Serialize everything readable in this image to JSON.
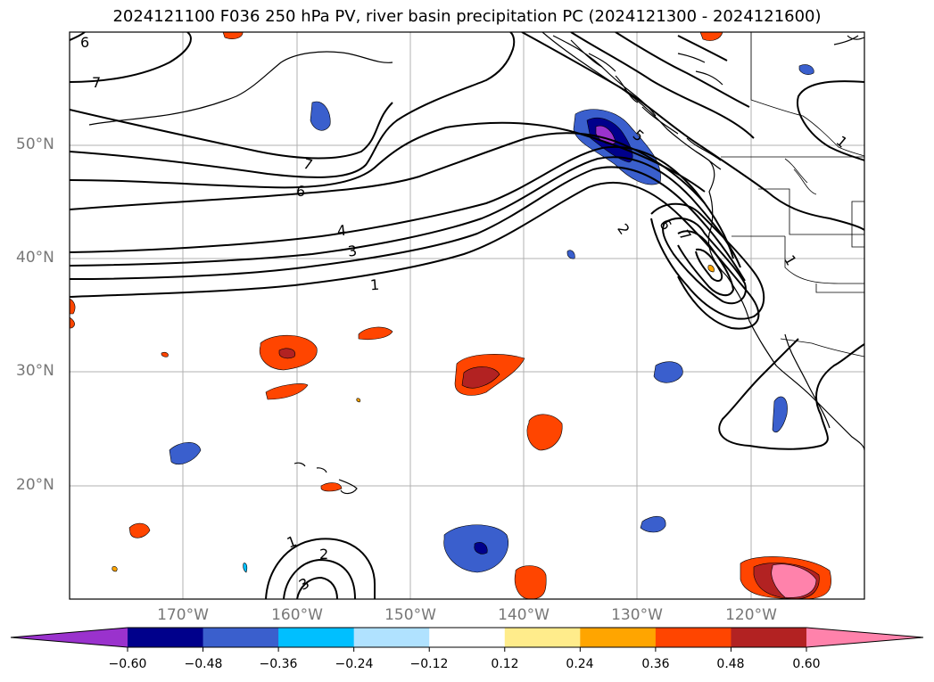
{
  "title": "2024121100 F036 250 hPa PV, river basin precipitation PC (2024121300 - 2024121600)",
  "lat_labels": [
    "50°N",
    "40°N",
    "30°N",
    "20°N"
  ],
  "lon_labels": [
    "170°W",
    "160°W",
    "150°W",
    "140°W",
    "130°W",
    "120°W"
  ],
  "contour_labels": [
    "6",
    "7",
    "7",
    "6",
    "4",
    "3",
    "1",
    "5",
    "2",
    "6",
    "7",
    "1",
    "1",
    "1",
    "2",
    "3"
  ],
  "colorbar": {
    "ticks": [
      "−0.60",
      "−0.48",
      "−0.36",
      "−0.24",
      "−0.12",
      "0.12",
      "0.24",
      "0.36",
      "0.48",
      "0.60"
    ],
    "colors": [
      "#9a32cd",
      "#00008b",
      "#3a5fcd",
      "#00bfff",
      "#b0e2ff",
      "#ffffff",
      "#ffec8b",
      "#ffa500",
      "#ff4500",
      "#b22222",
      "#ff82ab"
    ]
  },
  "map_meta": {
    "extent_lon": [
      -180,
      -110
    ],
    "extent_lat": [
      10,
      60
    ],
    "field": "250 hPa PV contours with precipitation principal component shading"
  }
}
